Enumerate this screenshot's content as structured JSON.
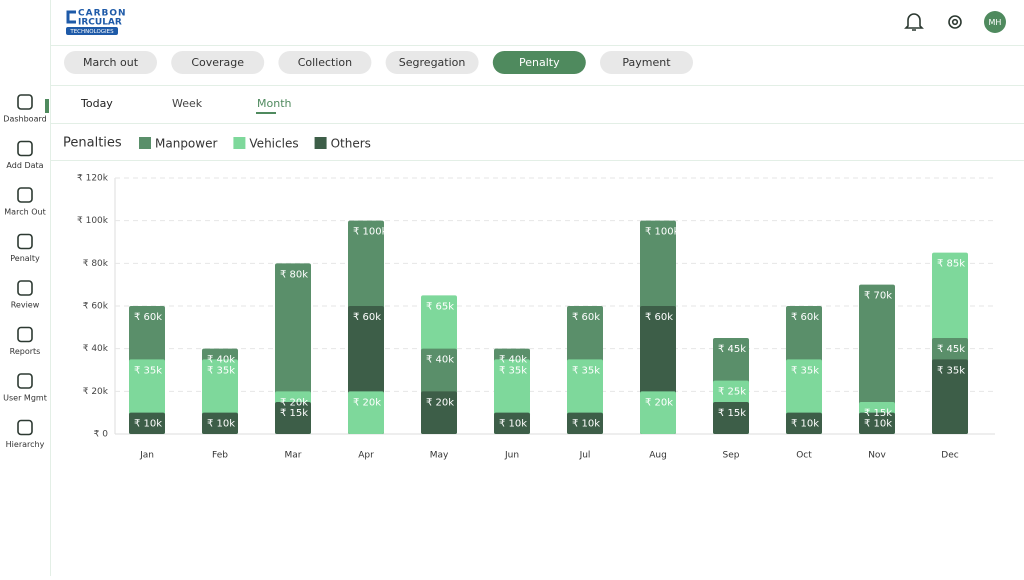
{
  "header": {
    "logo": [
      "CARBON",
      "IRCULAR",
      "TECHNOLOGIES"
    ],
    "avatar": "MH"
  },
  "nav": [
    "Dashboard",
    "Add Data",
    "March Out",
    "Penalty",
    "Review",
    "Reports",
    "User Mgmt",
    "Hierarchy"
  ],
  "tabs": [
    "March out",
    "Coverage",
    "Collection",
    "Segregation",
    "Penalty",
    "Payment"
  ],
  "periods": [
    "Today",
    "Week",
    "Month"
  ],
  "chart_data": {
    "type": "bar",
    "title": "Penalties",
    "categories": [
      "Jan",
      "Feb",
      "Mar",
      "Apr",
      "May",
      "Jun",
      "Jul",
      "Aug",
      "Sep",
      "Oct",
      "Nov",
      "Dec"
    ],
    "series": [
      {
        "name": "Manpower",
        "color": "#5a8f6a",
        "values": [
          60000,
          40000,
          80000,
          100000,
          40000,
          40000,
          60000,
          100000,
          45000,
          60000,
          70000,
          45000
        ],
        "value_labels": [
          "₹ 60k",
          "₹ 40k",
          "₹ 80k",
          "₹ 100k",
          "₹ 40k",
          "₹ 40k",
          "₹ 60k",
          "₹ 100k",
          "₹ 45k",
          "₹ 60k",
          "₹ 70k",
          "₹ 45k"
        ]
      },
      {
        "name": "Vehicles",
        "color": "#7ed89b",
        "values": [
          35000,
          35000,
          20000,
          20000,
          65000,
          35000,
          35000,
          20000,
          25000,
          35000,
          15000,
          85000
        ],
        "value_labels": [
          "₹ 35k",
          "₹ 35k",
          "₹ 20k",
          "₹ 20k",
          "₹ 65k",
          "₹ 35k",
          "₹ 35k",
          "₹ 20k",
          "₹ 25k",
          "₹ 35k",
          "₹ 15k",
          "₹ 85k"
        ]
      },
      {
        "name": "Others",
        "color": "#3d5e48",
        "values": [
          10000,
          10000,
          15000,
          60000,
          20000,
          10000,
          10000,
          60000,
          15000,
          10000,
          10000,
          35000
        ],
        "value_labels": [
          "₹ 10k",
          "₹ 10k",
          "₹ 15k",
          "₹ 60k",
          "₹ 20k",
          "₹ 10k",
          "₹ 10k",
          "₹ 60k",
          "₹ 15k",
          "₹ 10k",
          "₹ 10k",
          "₹ 35k"
        ]
      }
    ],
    "ylim": [
      0,
      120000
    ],
    "yticks": [
      {
        "value": 0,
        "label": "₹ 0"
      },
      {
        "value": 20000,
        "label": "₹ 20k"
      },
      {
        "value": 40000,
        "label": "₹ 40k"
      },
      {
        "value": 60000,
        "label": "₹ 60k"
      },
      {
        "value": 80000,
        "label": "₹ 80k"
      },
      {
        "value": 100000,
        "label": "₹ 100k"
      },
      {
        "value": 120000,
        "label": "₹ 120k"
      }
    ],
    "grid": true
  }
}
